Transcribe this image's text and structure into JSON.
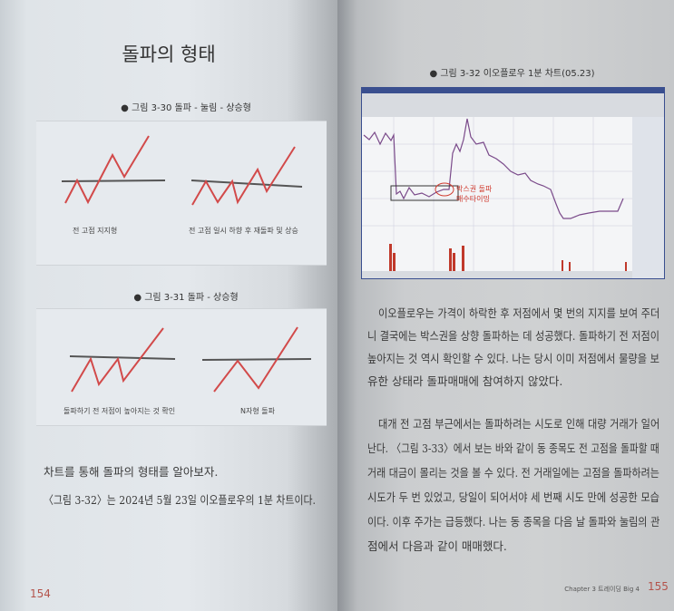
{
  "left_page": {
    "title": "돌파의 형태",
    "figure_30": {
      "caption": "● 그림 3-30  돌파 - 눌림 - 상승형",
      "labels": [
        "전 고점 지지형",
        "전 고점 일시 하향 후 재돌파 및 상승"
      ]
    },
    "figure_31": {
      "caption": "● 그림 3-31  돌파 - 상승형",
      "labels": [
        "돌파하기 전 저점이 높아지는 것 확인",
        "N자형 돌파"
      ]
    },
    "body": [
      "차트를 통해 돌파의 형태를 알아보자.",
      "〈그림 3-32〉는 2024년 5월 23일 이오플로우의 1분 차트이다."
    ],
    "page_number": "154"
  },
  "right_page": {
    "figure_32": {
      "caption": "● 그림 3-32  이오플로우 1분 차트(05.23)",
      "annotation": [
        "박스권 돌파",
        "매수타이밍"
      ],
      "colors": {
        "price_up": "#c0392b",
        "price_down": "#3b3b8f",
        "window": "#3a4f8f",
        "annotation": "#d03a2e"
      }
    },
    "paragraphs": [
      [
        "이오플로우는 가격이 하락한 후 저점에서 몇 번의 지지를 보여 주더",
        "니 결국에는 박스권을 상향 돌파하는 데 성공했다. 돌파하기 전 저점이",
        "높아지는 것 역시 확인할 수 있다. 나는 당시 이미 저점에서 물량을 보",
        "유한 상태라 돌파매매에 참여하지 않았다."
      ],
      [
        "대개 전 고점 부근에서는 돌파하려는 시도로 인해 대량 거래가 일어",
        "난다. 〈그림 3-33〉에서 보는 바와 같이 동 종목도 전 고점을 돌파할 때",
        "거래 대금이 몰리는 것을 볼 수 있다. 전 거래일에는 고점을 돌파하려는",
        "시도가 두 번 있었고, 당일이 되어서야 세 번째 시도 만에 성공한 모습",
        "이다. 이후 주가는 급등했다. 나는 동 종목을 다음 날 돌파와 눌림의 관",
        "점에서 다음과 같이 매매했다."
      ]
    ],
    "footer": "Chapter 3 트레이딩 Big 4",
    "page_number": "155"
  }
}
